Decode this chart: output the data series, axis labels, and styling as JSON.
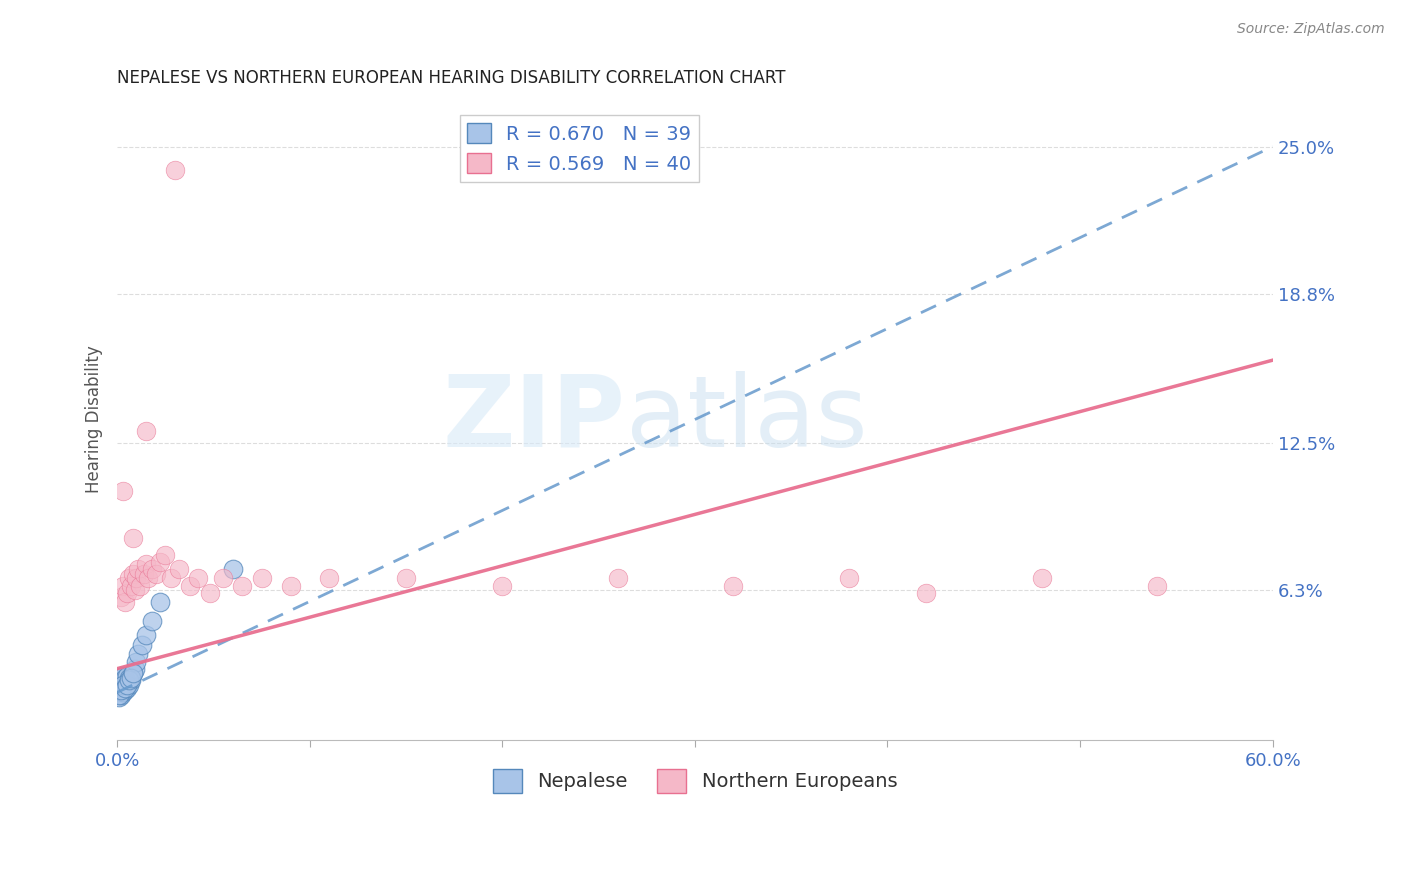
{
  "title": "NEPALESE VS NORTHERN EUROPEAN HEARING DISABILITY CORRELATION CHART",
  "source": "Source: ZipAtlas.com",
  "ylabel": "Hearing Disability",
  "legend_label1": "Nepalese",
  "legend_label2": "Northern Europeans",
  "xlim": [
    0.0,
    0.6
  ],
  "ylim": [
    0.0,
    0.27
  ],
  "yticks_right": [
    0.063,
    0.125,
    0.188,
    0.25
  ],
  "yticks_right_labels": [
    "6.3%",
    "12.5%",
    "18.8%",
    "25.0%"
  ],
  "blue_color": "#A8C4E8",
  "blue_line_color": "#6699CC",
  "blue_edge_color": "#5588BB",
  "pink_color": "#F5B8C8",
  "pink_line_color": "#E87090",
  "pink_edge_color": "#E87090",
  "background_color": "#ffffff",
  "grid_color": "#dddddd",
  "blue_x": [
    0.0005,
    0.001,
    0.001,
    0.001,
    0.0015,
    0.002,
    0.002,
    0.002,
    0.002,
    0.003,
    0.003,
    0.003,
    0.003,
    0.004,
    0.004,
    0.004,
    0.005,
    0.005,
    0.005,
    0.006,
    0.006,
    0.007,
    0.008,
    0.009,
    0.01,
    0.011,
    0.013,
    0.015,
    0.018,
    0.022,
    0.001,
    0.002,
    0.003,
    0.004,
    0.005,
    0.006,
    0.007,
    0.008,
    0.06
  ],
  "blue_y": [
    0.022,
    0.018,
    0.02,
    0.023,
    0.021,
    0.019,
    0.022,
    0.024,
    0.026,
    0.02,
    0.022,
    0.025,
    0.027,
    0.021,
    0.023,
    0.026,
    0.022,
    0.024,
    0.027,
    0.023,
    0.026,
    0.025,
    0.028,
    0.03,
    0.033,
    0.036,
    0.04,
    0.044,
    0.05,
    0.058,
    0.019,
    0.021,
    0.023,
    0.022,
    0.023,
    0.025,
    0.026,
    0.028,
    0.072
  ],
  "pink_x": [
    0.002,
    0.003,
    0.004,
    0.005,
    0.006,
    0.007,
    0.008,
    0.009,
    0.01,
    0.011,
    0.012,
    0.014,
    0.015,
    0.016,
    0.018,
    0.02,
    0.022,
    0.025,
    0.028,
    0.032,
    0.038,
    0.042,
    0.048,
    0.055,
    0.065,
    0.075,
    0.09,
    0.11,
    0.15,
    0.2,
    0.26,
    0.32,
    0.38,
    0.42,
    0.48,
    0.54,
    0.003,
    0.008,
    0.015,
    0.03
  ],
  "pink_y": [
    0.06,
    0.065,
    0.058,
    0.062,
    0.068,
    0.065,
    0.07,
    0.063,
    0.068,
    0.072,
    0.065,
    0.07,
    0.074,
    0.068,
    0.072,
    0.07,
    0.075,
    0.078,
    0.068,
    0.072,
    0.065,
    0.068,
    0.062,
    0.068,
    0.065,
    0.068,
    0.065,
    0.068,
    0.068,
    0.065,
    0.068,
    0.065,
    0.068,
    0.062,
    0.068,
    0.065,
    0.105,
    0.085,
    0.13,
    0.24
  ],
  "blue_trend_x0": 0.0,
  "blue_trend_y0": 0.02,
  "blue_trend_x1": 0.6,
  "blue_trend_y1": 0.25,
  "pink_trend_x0": 0.0,
  "pink_trend_y0": 0.03,
  "pink_trend_x1": 0.6,
  "pink_trend_y1": 0.16,
  "watermark_zip": "ZIP",
  "watermark_atlas": "atlas"
}
